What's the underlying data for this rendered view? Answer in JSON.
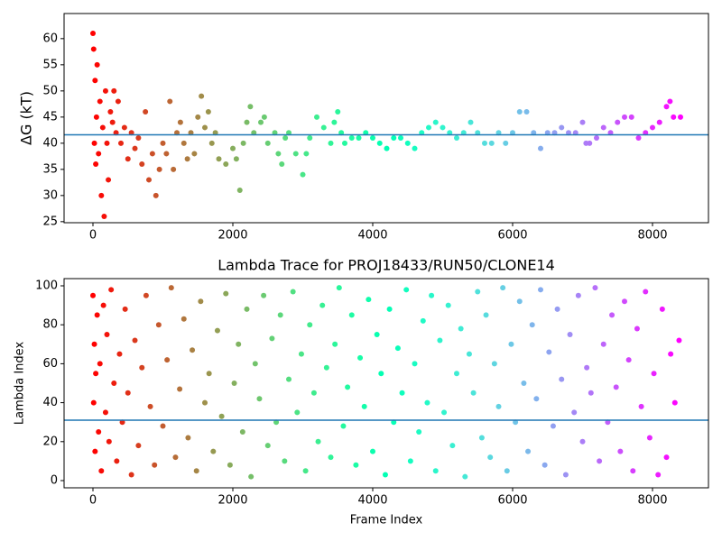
{
  "chart_data": [
    {
      "type": "scatter",
      "ylabel": "ΔG (kT)",
      "colormap": "rainbow_r",
      "marker_size": 3,
      "xlim": [
        -413,
        8800
      ],
      "xticks": [
        0,
        2000,
        4000,
        6000,
        8000
      ],
      "ylim": [
        24.8,
        64.8
      ],
      "yticks": [
        25,
        30,
        35,
        40,
        45,
        50,
        55,
        60
      ],
      "reference_line": 41.6,
      "reference_color": "#1f77b4",
      "x": [
        0,
        10,
        20,
        30,
        40,
        50,
        60,
        80,
        100,
        120,
        140,
        160,
        180,
        200,
        220,
        250,
        280,
        300,
        330,
        360,
        400,
        450,
        500,
        550,
        600,
        650,
        700,
        750,
        800,
        850,
        900,
        950,
        1000,
        1050,
        1100,
        1150,
        1200,
        1250,
        1300,
        1350,
        1400,
        1450,
        1500,
        1550,
        1600,
        1650,
        1700,
        1750,
        1800,
        1900,
        2000,
        2050,
        2100,
        2150,
        2200,
        2250,
        2300,
        2400,
        2450,
        2500,
        2600,
        2650,
        2700,
        2750,
        2800,
        2900,
        3000,
        3050,
        3100,
        3200,
        3300,
        3400,
        3450,
        3500,
        3550,
        3600,
        3700,
        3800,
        3900,
        4000,
        4100,
        4200,
        4300,
        4400,
        4500,
        4600,
        4700,
        4800,
        4900,
        5000,
        5100,
        5200,
        5300,
        5400,
        5500,
        5600,
        5700,
        5800,
        5900,
        6000,
        6100,
        6200,
        6300,
        6400,
        6500,
        6600,
        6700,
        6800,
        6900,
        7000,
        7050,
        7100,
        7200,
        7300,
        7400,
        7500,
        7600,
        7700,
        7800,
        7900,
        8000,
        8100,
        8200,
        8250,
        8300,
        8400
      ],
      "y": [
        61,
        58,
        40,
        52,
        36,
        45,
        55,
        38,
        48,
        30,
        43,
        26,
        50,
        40,
        33,
        46,
        44,
        50,
        42,
        48,
        40,
        43,
        37,
        42,
        39,
        41,
        36,
        46,
        33,
        38,
        30,
        35,
        40,
        38,
        48,
        35,
        42,
        44,
        40,
        37,
        42,
        38,
        45,
        49,
        43,
        46,
        40,
        42,
        37,
        36,
        39,
        37,
        31,
        40,
        44,
        47,
        42,
        44,
        45,
        40,
        42,
        38,
        36,
        41,
        42,
        38,
        34,
        38,
        41,
        45,
        43,
        40,
        44,
        46,
        42,
        40,
        41,
        41,
        42,
        41,
        40,
        39,
        41,
        41,
        40,
        39,
        42,
        43,
        44,
        43,
        42,
        41,
        42,
        44,
        42,
        40,
        40,
        42,
        40,
        42,
        46,
        46,
        42,
        39,
        42,
        42,
        43,
        42,
        42,
        44,
        40,
        40,
        41,
        43,
        42,
        44,
        45,
        45,
        41,
        42,
        43,
        44,
        47,
        48,
        45,
        45
      ]
    },
    {
      "type": "scatter",
      "title": "Lambda Trace for PROJ18433/RUN50/CLONE14",
      "xlabel": "Frame Index",
      "ylabel": "Lambda Index",
      "colormap": "rainbow_r",
      "marker_size": 3,
      "xlim": [
        -413,
        8800
      ],
      "xticks": [
        0,
        2000,
        4000,
        6000,
        8000
      ],
      "ylim": [
        -3.7,
        103.7
      ],
      "yticks": [
        0,
        20,
        40,
        60,
        80,
        100
      ],
      "reference_line": 31,
      "reference_color": "#1f77b4",
      "x": [
        0,
        10,
        20,
        30,
        40,
        60,
        80,
        100,
        120,
        150,
        180,
        200,
        230,
        260,
        300,
        340,
        380,
        420,
        460,
        500,
        550,
        600,
        650,
        700,
        760,
        820,
        880,
        940,
        1000,
        1060,
        1120,
        1180,
        1240,
        1300,
        1360,
        1420,
        1480,
        1540,
        1600,
        1660,
        1720,
        1780,
        1840,
        1900,
        1960,
        2020,
        2080,
        2140,
        2200,
        2260,
        2320,
        2380,
        2440,
        2500,
        2560,
        2620,
        2680,
        2740,
        2800,
        2860,
        2920,
        2980,
        3040,
        3100,
        3160,
        3220,
        3280,
        3340,
        3400,
        3460,
        3520,
        3580,
        3640,
        3700,
        3760,
        3820,
        3880,
        3940,
        4000,
        4060,
        4120,
        4180,
        4240,
        4300,
        4360,
        4420,
        4480,
        4540,
        4600,
        4660,
        4720,
        4780,
        4840,
        4900,
        4960,
        5020,
        5080,
        5140,
        5200,
        5260,
        5320,
        5380,
        5440,
        5500,
        5560,
        5620,
        5680,
        5740,
        5800,
        5860,
        5920,
        5980,
        6040,
        6100,
        6160,
        6220,
        6280,
        6340,
        6400,
        6460,
        6520,
        6580,
        6640,
        6700,
        6760,
        6820,
        6880,
        6940,
        7000,
        7060,
        7120,
        7180,
        7240,
        7300,
        7360,
        7420,
        7480,
        7540,
        7600,
        7660,
        7720,
        7780,
        7840,
        7900,
        7960,
        8020,
        8080,
        8140,
        8200,
        8260,
        8320,
        8380
      ],
      "y": [
        95,
        40,
        70,
        15,
        55,
        85,
        25,
        60,
        5,
        90,
        35,
        75,
        20,
        98,
        50,
        10,
        65,
        30,
        88,
        45,
        3,
        72,
        18,
        58,
        95,
        38,
        8,
        80,
        28,
        62,
        99,
        12,
        47,
        83,
        22,
        67,
        5,
        92,
        40,
        55,
        15,
        77,
        33,
        96,
        8,
        50,
        70,
        25,
        88,
        2,
        60,
        42,
        95,
        18,
        73,
        30,
        85,
        10,
        52,
        97,
        35,
        65,
        5,
        80,
        45,
        20,
        90,
        58,
        12,
        70,
        99,
        28,
        48,
        85,
        8,
        63,
        38,
        93,
        15,
        75,
        55,
        3,
        88,
        30,
        68,
        45,
        98,
        10,
        60,
        25,
        82,
        40,
        95,
        5,
        72,
        35,
        90,
        18,
        55,
        78,
        2,
        65,
        45,
        97,
        22,
        85,
        12,
        60,
        38,
        99,
        5,
        70,
        30,
        92,
        50,
        15,
        80,
        42,
        98,
        8,
        66,
        28,
        88,
        52,
        3,
        75,
        35,
        95,
        20,
        58,
        45,
        99,
        10,
        70,
        30,
        85,
        48,
        15,
        92,
        62,
        5,
        78,
        38,
        97,
        22,
        55,
        3,
        88,
        12,
        65,
        40,
        72
      ]
    }
  ]
}
